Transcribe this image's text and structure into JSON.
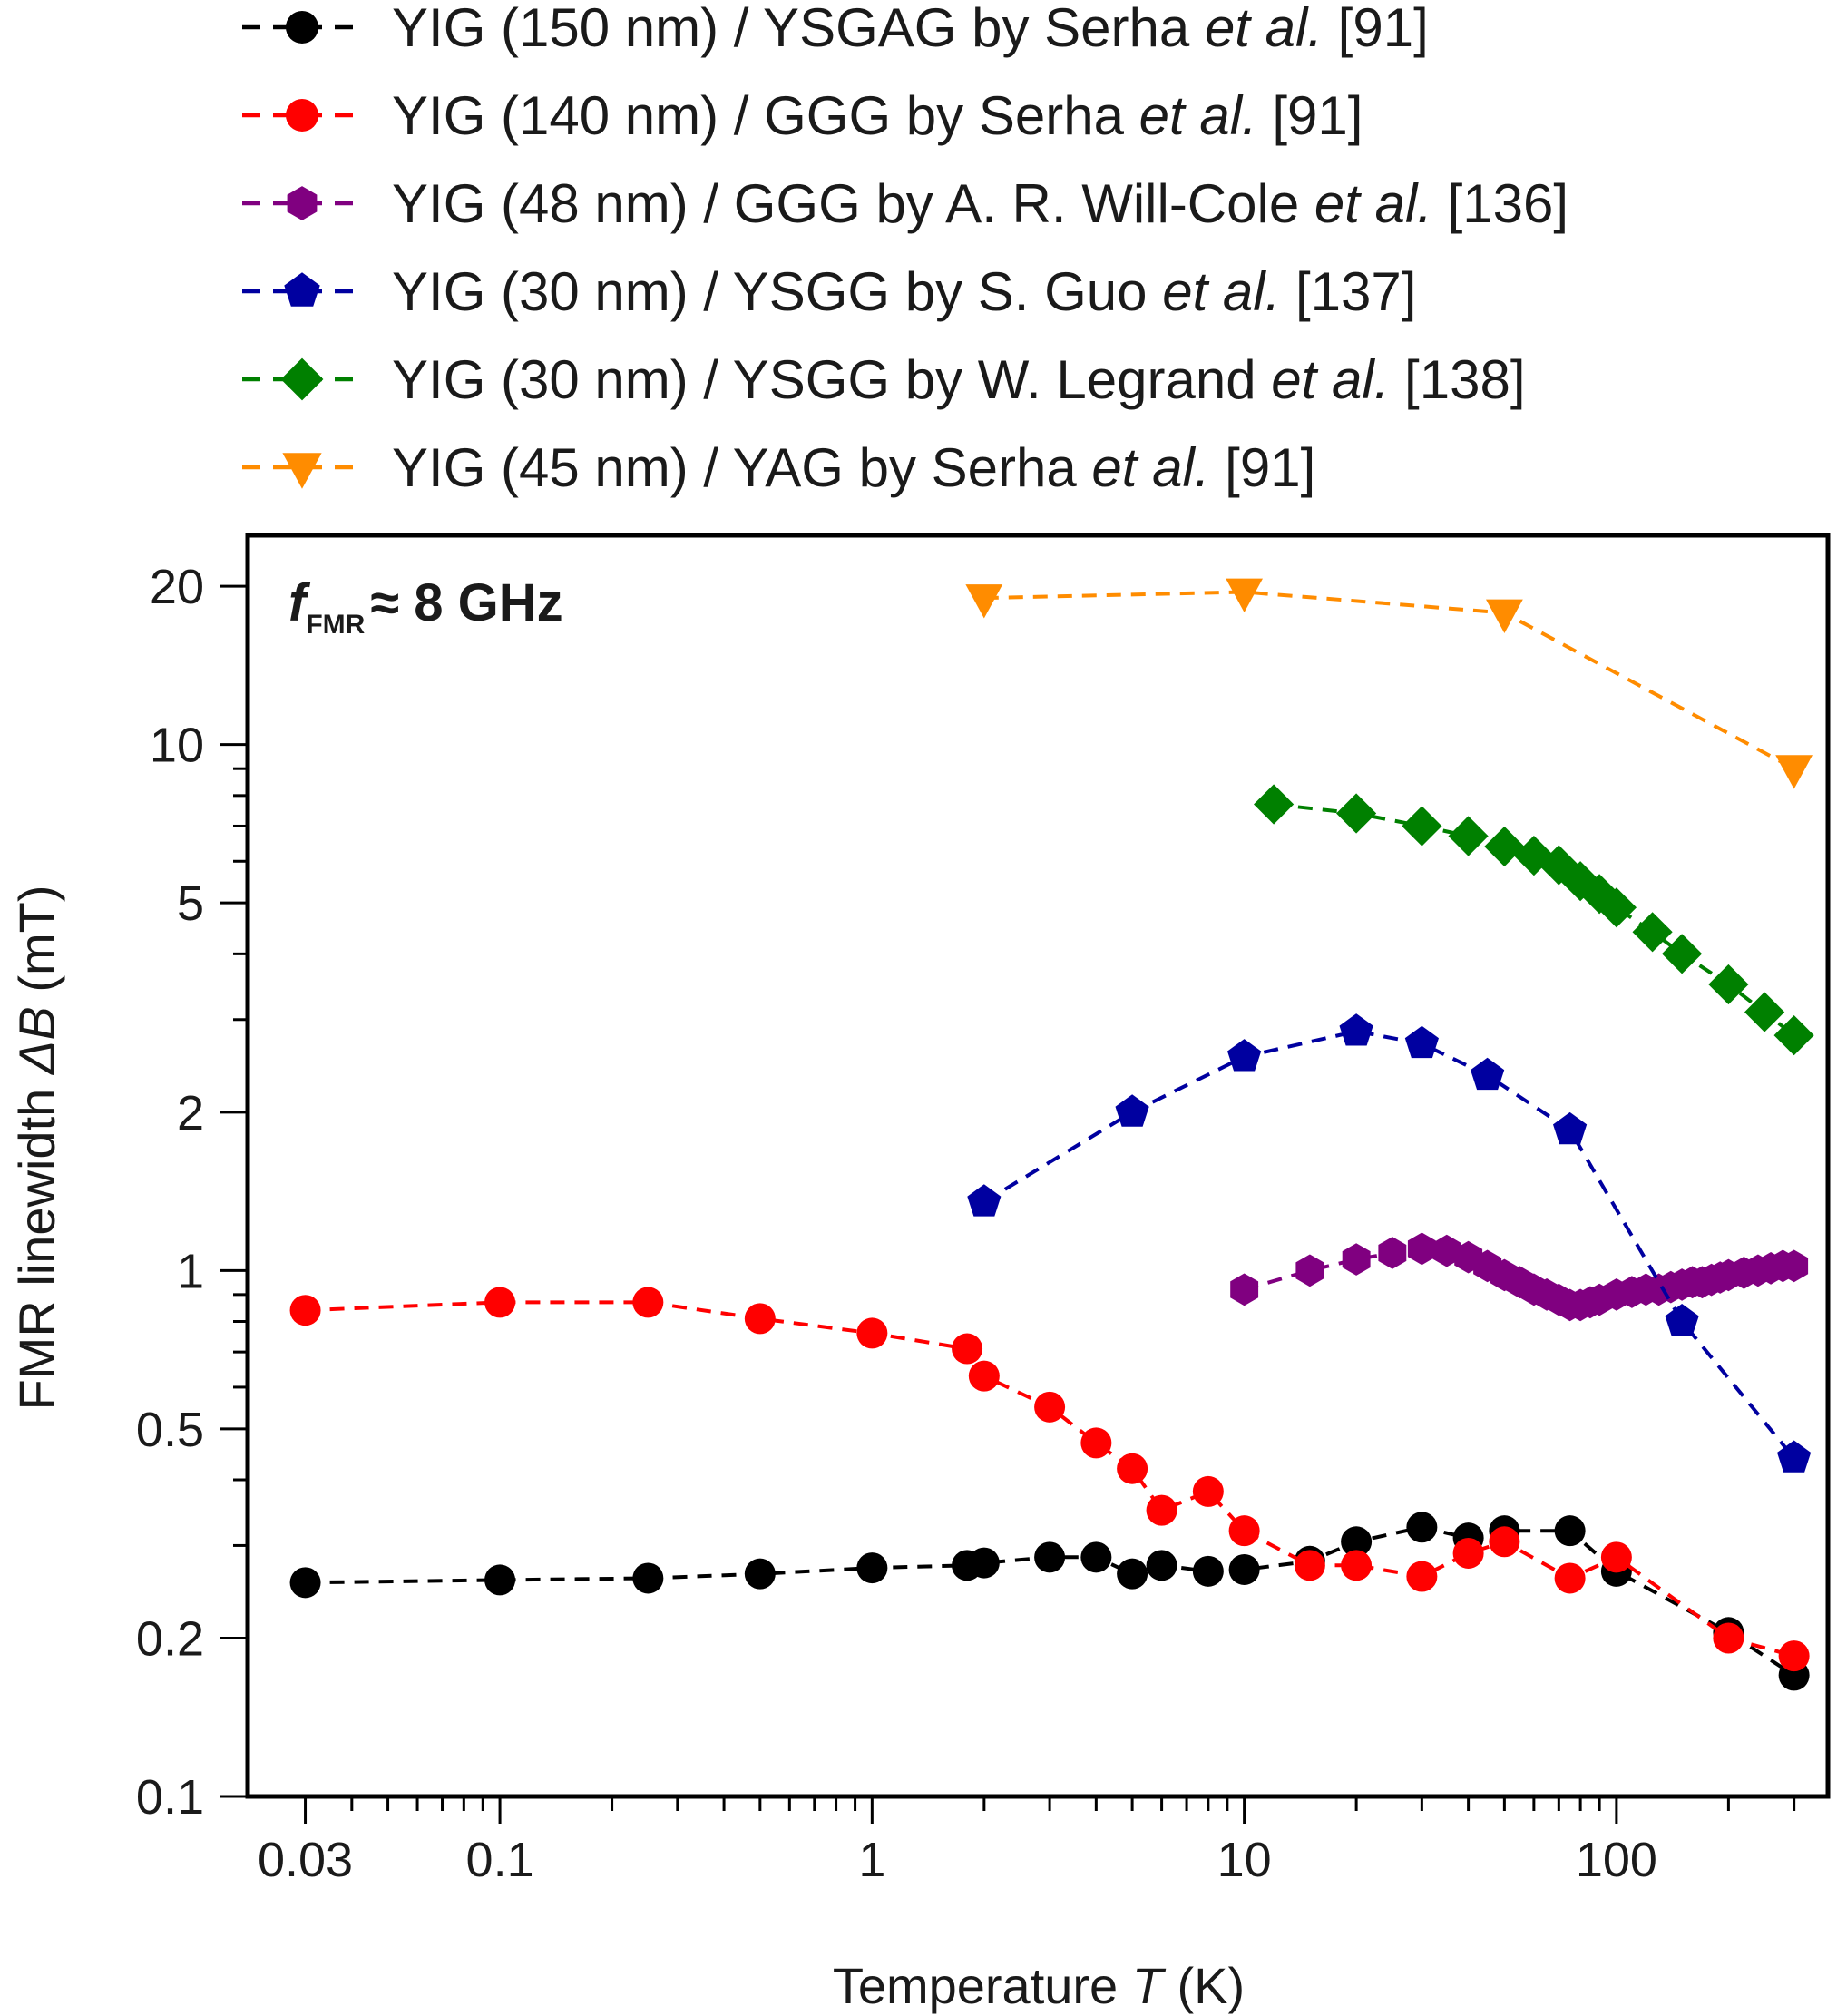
{
  "chart_data": {
    "type": "line",
    "title": "",
    "annotation": {
      "symbol": "f",
      "subscript": "FMR",
      "rest": "≈ 8 GHz"
    },
    "xlabel": {
      "main": "Temperature ",
      "var": "T",
      "unit": " (K)"
    },
    "ylabel": {
      "main": "FMR linewidth ",
      "var": "ΔB",
      "unit": "  (mT)"
    },
    "xscale": "log",
    "yscale": "log",
    "xlim": [
      0.021,
      370
    ],
    "ylim": [
      0.1,
      25
    ],
    "x_ticks": [
      {
        "value": 0.03,
        "label": "0.03"
      },
      {
        "value": 0.1,
        "label": "0.1"
      },
      {
        "value": 1,
        "label": "1"
      },
      {
        "value": 10,
        "label": "10"
      },
      {
        "value": 100,
        "label": "100"
      }
    ],
    "y_ticks": [
      {
        "value": 0.1,
        "label": "0.1"
      },
      {
        "value": 0.2,
        "label": "0.2"
      },
      {
        "value": 0.5,
        "label": "0.5"
      },
      {
        "value": 1,
        "label": "1"
      },
      {
        "value": 2,
        "label": "2"
      },
      {
        "value": 5,
        "label": "5"
      },
      {
        "value": 10,
        "label": "10"
      },
      {
        "value": 20,
        "label": "20"
      }
    ],
    "legend_position": "above plot",
    "series": [
      {
        "name": "YIG (150 nm) / YSGAG by Serha et al. [91]",
        "label_parts": [
          "YIG (150 nm) / YSGAG by Serha ",
          "et al.",
          " [91]"
        ],
        "color": "#000000",
        "marker": "circle",
        "points": [
          [
            0.03,
            0.255
          ],
          [
            0.1,
            0.258
          ],
          [
            0.25,
            0.26
          ],
          [
            0.5,
            0.265
          ],
          [
            1,
            0.272
          ],
          [
            1.8,
            0.275
          ],
          [
            2,
            0.278
          ],
          [
            3,
            0.285
          ],
          [
            4,
            0.285
          ],
          [
            5,
            0.265
          ],
          [
            6,
            0.275
          ],
          [
            8,
            0.268
          ],
          [
            10,
            0.27
          ],
          [
            15,
            0.28
          ],
          [
            20,
            0.305
          ],
          [
            30,
            0.325
          ],
          [
            40,
            0.31
          ],
          [
            50,
            0.32
          ],
          [
            75,
            0.32
          ],
          [
            100,
            0.268
          ],
          [
            200,
            0.205
          ],
          [
            300,
            0.17
          ]
        ]
      },
      {
        "name": "YIG (140 nm) / GGG by Serha et al. [91]",
        "label_parts": [
          "YIG (140 nm) / GGG by Serha ",
          "et al.",
          " [91]"
        ],
        "color": "#ff0000",
        "marker": "circle",
        "points": [
          [
            0.03,
            0.84
          ],
          [
            0.1,
            0.87
          ],
          [
            0.25,
            0.87
          ],
          [
            0.5,
            0.81
          ],
          [
            1,
            0.76
          ],
          [
            1.8,
            0.71
          ],
          [
            2,
            0.63
          ],
          [
            3,
            0.55
          ],
          [
            4,
            0.47
          ],
          [
            5,
            0.42
          ],
          [
            6,
            0.35
          ],
          [
            8,
            0.38
          ],
          [
            10,
            0.32
          ],
          [
            15,
            0.275
          ],
          [
            20,
            0.275
          ],
          [
            30,
            0.262
          ],
          [
            40,
            0.29
          ],
          [
            50,
            0.305
          ],
          [
            75,
            0.26
          ],
          [
            100,
            0.285
          ],
          [
            200,
            0.2
          ],
          [
            300,
            0.185
          ]
        ]
      },
      {
        "name": "YIG (48 nm) / GGG by A. R. Will-Cole et al. [136]",
        "label_parts": [
          "YIG (48 nm) / GGG by A. R. Will-Cole ",
          "et al.",
          " [136]"
        ],
        "color": "#800080",
        "marker": "hexagon",
        "points": [
          [
            10,
            0.92
          ],
          [
            15,
            1.0
          ],
          [
            20,
            1.05
          ],
          [
            25,
            1.08
          ],
          [
            30,
            1.1
          ],
          [
            35,
            1.09
          ],
          [
            40,
            1.06
          ],
          [
            45,
            1.02
          ],
          [
            50,
            0.98
          ],
          [
            55,
            0.95
          ],
          [
            60,
            0.92
          ],
          [
            65,
            0.9
          ],
          [
            70,
            0.88
          ],
          [
            75,
            0.86
          ],
          [
            80,
            0.86
          ],
          [
            85,
            0.87
          ],
          [
            90,
            0.88
          ],
          [
            100,
            0.9
          ],
          [
            110,
            0.91
          ],
          [
            120,
            0.92
          ],
          [
            130,
            0.92
          ],
          [
            140,
            0.93
          ],
          [
            150,
            0.94
          ],
          [
            160,
            0.95
          ],
          [
            170,
            0.95
          ],
          [
            180,
            0.96
          ],
          [
            190,
            0.97
          ],
          [
            200,
            0.98
          ],
          [
            220,
            0.99
          ],
          [
            240,
            1.0
          ],
          [
            260,
            1.01
          ],
          [
            280,
            1.02
          ],
          [
            300,
            1.02
          ]
        ]
      },
      {
        "name": "YIG (30 nm) / YSGG by S. Guo et al. [137]",
        "label_parts": [
          "YIG (30 nm) / YSGG by S. Guo ",
          "et al.",
          " [137]"
        ],
        "color": "#0000a0",
        "marker": "pentagon",
        "points": [
          [
            2,
            1.35
          ],
          [
            5,
            2.0
          ],
          [
            10,
            2.55
          ],
          [
            20,
            2.85
          ],
          [
            30,
            2.7
          ],
          [
            45,
            2.35
          ],
          [
            75,
            1.85
          ],
          [
            150,
            0.8
          ],
          [
            300,
            0.44
          ]
        ]
      },
      {
        "name": "YIG (30 nm) / YSGG by W. Legrand et al. [138]",
        "label_parts": [
          "YIG (30 nm) / YSGG by W. Legrand ",
          "et al.",
          " [138]"
        ],
        "color": "#008000",
        "marker": "diamond",
        "points": [
          [
            12,
            7.7
          ],
          [
            20,
            7.4
          ],
          [
            30,
            7.0
          ],
          [
            40,
            6.7
          ],
          [
            50,
            6.4
          ],
          [
            60,
            6.15
          ],
          [
            70,
            5.9
          ],
          [
            80,
            5.5
          ],
          [
            90,
            5.2
          ],
          [
            100,
            4.9
          ],
          [
            125,
            4.4
          ],
          [
            150,
            4.0
          ],
          [
            200,
            3.5
          ],
          [
            250,
            3.1
          ],
          [
            300,
            2.8
          ]
        ]
      },
      {
        "name": "YIG (45 nm) / YAG by Serha et al. [91]",
        "label_parts": [
          "YIG (45 nm) / YAG by Serha ",
          "et al.",
          " [91]"
        ],
        "color": "#ff8c00",
        "marker": "triangle-down",
        "points": [
          [
            2,
            19.0
          ],
          [
            10,
            19.5
          ],
          [
            50,
            17.8
          ],
          [
            300,
            9.0
          ]
        ]
      }
    ]
  }
}
